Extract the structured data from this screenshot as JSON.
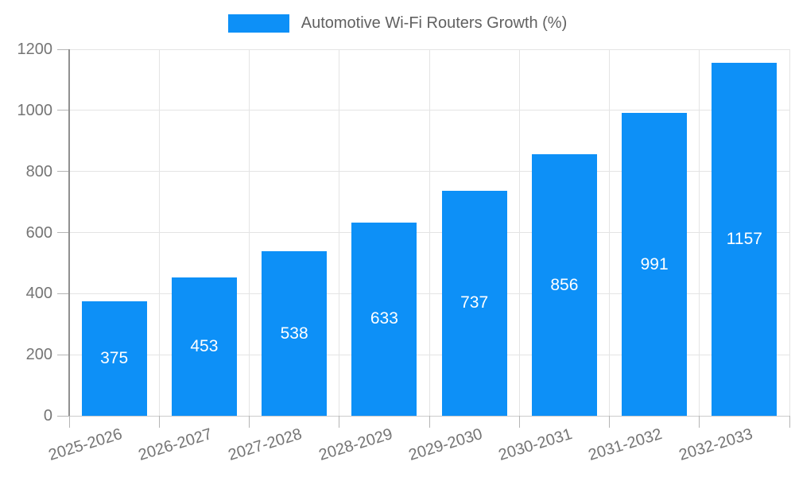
{
  "chart_data": {
    "type": "bar",
    "series_name": "Automotive Wi-Fi Routers Growth (%)",
    "categories": [
      "2025-2026",
      "2026-2027",
      "2027-2028",
      "2028-2029",
      "2029-2030",
      "2030-2031",
      "2031-2032",
      "2032-2033"
    ],
    "values": [
      375,
      453,
      538,
      633,
      737,
      856,
      991,
      1157
    ],
    "bar_value_labels": [
      "375",
      "453",
      "538",
      "633",
      "737",
      "856",
      "991",
      "1157"
    ],
    "ylim": [
      0,
      1200
    ],
    "yticks": [
      0,
      200,
      400,
      600,
      800,
      1000,
      1200
    ],
    "ytick_labels": [
      "0",
      "200",
      "400",
      "600",
      "800",
      "1000",
      "1200"
    ],
    "grid": true,
    "legend_position": "top-center",
    "xlabel": "",
    "ylabel": "",
    "colors": {
      "bar": "#0d90f7",
      "bar_label": "#ffffff",
      "grid": "#e4e4e4",
      "axis_line": "#909090",
      "tick_mark": "#b5b5b5",
      "zero_line": "#cccccc",
      "tick_label": "#757575",
      "legend_text": "#616161",
      "background": "#ffffff"
    }
  }
}
